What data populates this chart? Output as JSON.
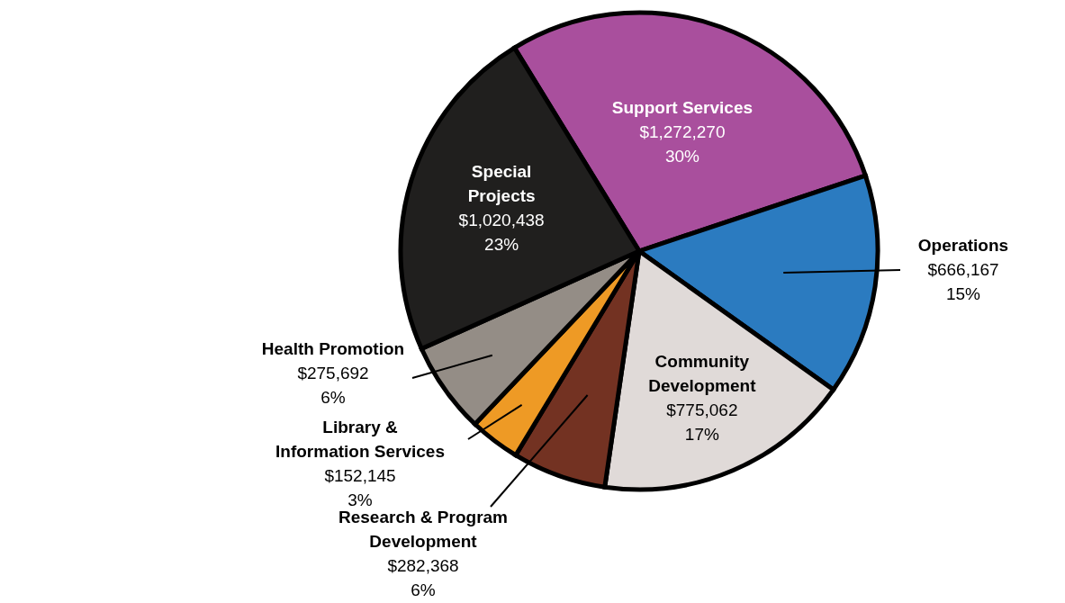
{
  "chart_data": {
    "type": "pie",
    "categories": [
      "Support Services",
      "Operations",
      "Community Development",
      "Research & Program Development",
      "Library & Information Services",
      "Health Promotion",
      "Special Projects"
    ],
    "values": [
      1272270,
      666167,
      775062,
      282368,
      152145,
      275692,
      1020438
    ],
    "value_labels": [
      "$1,272,270\n30%",
      "$666,167\n15%",
      "$775,062\n17%",
      "$282,368\n6%",
      "$152,145\n3%",
      "$275,692\n6%",
      "$1,020,438\n23%"
    ],
    "colors": [
      "#a94f9d",
      "#2b7bc0",
      "#e0dad8",
      "#733222",
      "#ee9a25",
      "#948d86",
      "#201f1e"
    ]
  }
}
